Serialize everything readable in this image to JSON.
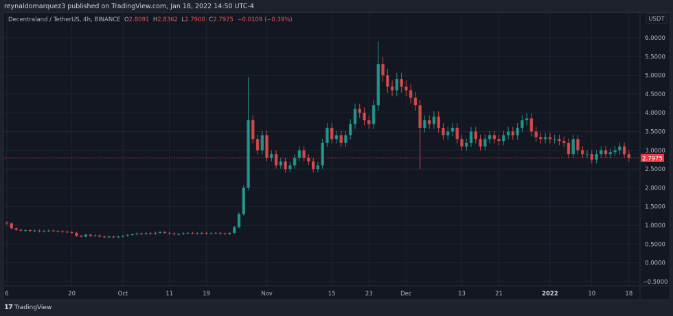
{
  "header": {
    "published": "reynaldomarquez3 published on TradingView.com, Jan 18, 2022 14:50 UTC-4"
  },
  "legend": {
    "symbol": "Decentraland / TetherUS, 4h, BINANCE",
    "open_label": "O",
    "open": "2.8091",
    "high_label": "H",
    "high": "2.8362",
    "low_label": "L",
    "low": "2.7900",
    "close_label": "C",
    "close": "2.7975",
    "change": "−0.0109 (−0.39%)"
  },
  "footer": {
    "brand": "TradingView",
    "logo_icon": "tradingview-logo-icon"
  },
  "colors": {
    "up": "#26a69a",
    "down": "#ef5350",
    "background": "#131722",
    "grid": "#2a2e39",
    "last_price": "#f23645"
  },
  "chart_data": {
    "type": "candlestick",
    "title": "Decentraland / TetherUS, 4h, BINANCE",
    "currency_label": "USDT",
    "last_price": "2.7975",
    "ylim": [
      -0.6,
      6.3
    ],
    "grid": true,
    "y_ticks": [
      "6.0000",
      "5.5000",
      "5.0000",
      "4.5000",
      "4.0000",
      "3.5000",
      "3.0000",
      "2.5000",
      "2.0000",
      "1.5000",
      "1.0000",
      "0.5000",
      "0.0000",
      "−0.5000"
    ],
    "y_tick_values": [
      6,
      5.5,
      5,
      4.5,
      4,
      3.5,
      3,
      2.5,
      2,
      1.5,
      1,
      0.5,
      0,
      -0.5
    ],
    "x_ticks": [
      {
        "label": "6",
        "date": "2021-09-06"
      },
      {
        "label": "20",
        "date": "2021-09-20"
      },
      {
        "label": "Oct",
        "date": "2021-10-01"
      },
      {
        "label": "11",
        "date": "2021-10-11"
      },
      {
        "label": "19",
        "date": "2021-10-19"
      },
      {
        "label": "Nov",
        "date": "2021-11-01"
      },
      {
        "label": "15",
        "date": "2021-11-15"
      },
      {
        "label": "23",
        "date": "2021-11-23"
      },
      {
        "label": "Dec",
        "date": "2021-12-01"
      },
      {
        "label": "13",
        "date": "2021-12-13"
      },
      {
        "label": "21",
        "date": "2021-12-21"
      },
      {
        "label": "2022",
        "date": "2022-01-01",
        "bold": true
      },
      {
        "label": "10",
        "date": "2022-01-10"
      },
      {
        "label": "18",
        "date": "2022-01-18"
      }
    ],
    "start_date": "2021-09-06",
    "approx_daily_close": [
      1.05,
      0.92,
      0.88,
      0.86,
      0.87,
      0.85,
      0.86,
      0.84,
      0.85,
      0.86,
      0.85,
      0.84,
      0.83,
      0.82,
      0.8,
      0.72,
      0.7,
      0.75,
      0.72,
      0.73,
      0.7,
      0.68,
      0.7,
      0.68,
      0.7,
      0.72,
      0.74,
      0.76,
      0.78,
      0.77,
      0.79,
      0.78,
      0.8,
      0.82,
      0.8,
      0.78,
      0.76,
      0.77,
      0.79,
      0.8,
      0.79,
      0.78,
      0.8,
      0.78,
      0.79,
      0.8,
      0.78,
      0.77,
      0.8,
      0.95,
      1.3,
      2.0,
      3.8,
      3.3,
      3.0,
      3.4,
      2.8,
      2.9,
      2.6,
      2.7,
      2.5,
      2.6,
      2.8,
      3.0,
      2.8,
      2.7,
      2.5,
      2.6,
      3.2,
      3.6,
      3.3,
      3.4,
      3.2,
      3.4,
      3.7,
      4.1,
      4.0,
      3.8,
      3.7,
      4.2,
      5.3,
      5.0,
      4.7,
      4.6,
      4.9,
      4.7,
      4.6,
      4.4,
      4.2,
      3.6,
      3.8,
      3.7,
      3.9,
      3.6,
      3.4,
      3.5,
      3.6,
      3.3,
      3.1,
      3.2,
      3.5,
      3.3,
      3.1,
      3.3,
      3.4,
      3.3,
      3.25,
      3.4,
      3.5,
      3.4,
      3.6,
      3.8,
      3.85,
      3.5,
      3.35,
      3.3,
      3.35,
      3.3,
      3.3,
      3.25,
      3.2,
      2.9,
      3.3,
      3.0,
      2.9,
      2.9,
      2.75,
      2.9,
      3.0,
      2.9,
      2.95,
      3.0,
      3.1,
      2.9,
      2.7975
    ],
    "notable_extremes": [
      {
        "date": "2021-10-28",
        "high": 4.95
      },
      {
        "date": "2021-11-25",
        "high": 5.9
      },
      {
        "date": "2021-12-04",
        "low": 2.5
      }
    ]
  }
}
